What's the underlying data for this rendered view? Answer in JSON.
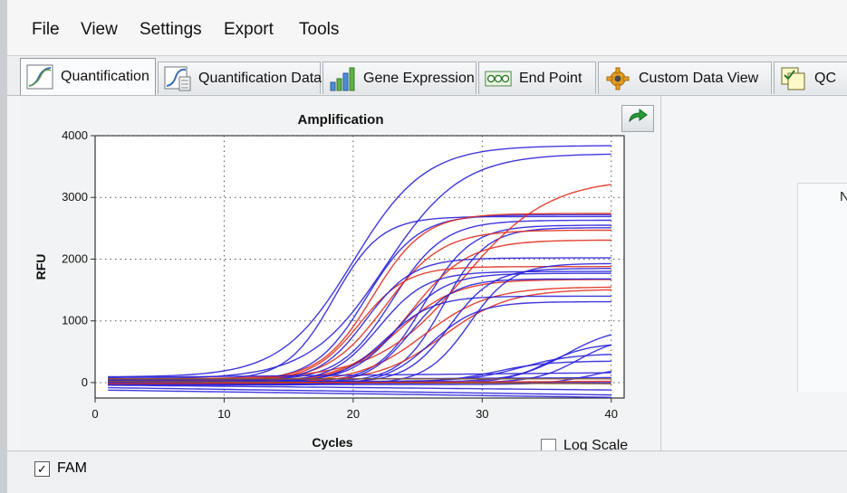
{
  "menu": {
    "items": [
      "File",
      "View",
      "Settings",
      "Export",
      "Tools"
    ]
  },
  "tabs": [
    {
      "label": "Quantification",
      "icon": "amplification-curve-icon",
      "active": true
    },
    {
      "label": "Quantification Data",
      "icon": "amplification-data-icon",
      "active": false
    },
    {
      "label": "Gene Expression",
      "icon": "bar-chart-icon",
      "active": false
    },
    {
      "label": "End Point",
      "icon": "endpoint-wells-icon",
      "active": false
    },
    {
      "label": "Custom Data View",
      "icon": "gear-icon",
      "active": false
    },
    {
      "label": "QC",
      "icon": "qc-checklist-icon",
      "active": false
    }
  ],
  "right_panel": {
    "partial_text": "N"
  },
  "log_scale": {
    "label": "Log Scale",
    "checked": false
  },
  "fam": {
    "label": "FAM",
    "checked": true
  },
  "colors": {
    "blue": "#2a22d8",
    "red": "#e0301e",
    "brown": "#8b5a2b"
  },
  "chart_data": {
    "type": "line",
    "title": "Amplification",
    "xlabel": "Cycles",
    "ylabel": "RFU",
    "xlim": [
      0,
      41
    ],
    "ylim": [
      -250,
      4000
    ],
    "xticks": [
      0,
      10,
      20,
      30,
      40
    ],
    "yticks": [
      0,
      1000,
      2000,
      3000,
      4000
    ],
    "grid": true,
    "legend": "none",
    "series": [
      {
        "color": "blue",
        "baseline": 90,
        "plateau": 3750,
        "ct": 20.0,
        "k": 0.36
      },
      {
        "color": "blue",
        "baseline": 60,
        "plateau": 3650,
        "ct": 22.5,
        "k": 0.34
      },
      {
        "color": "blue",
        "baseline": 40,
        "plateau": 2650,
        "ct": 18.5,
        "k": 0.55
      },
      {
        "color": "blue",
        "baseline": 20,
        "plateau": 2700,
        "ct": 21.0,
        "k": 0.5
      },
      {
        "color": "blue",
        "baseline": 30,
        "plateau": 2600,
        "ct": 23.0,
        "k": 0.5
      },
      {
        "color": "blue",
        "baseline": 0,
        "plateau": 2550,
        "ct": 25.5,
        "k": 0.55
      },
      {
        "color": "blue",
        "baseline": 10,
        "plateau": 2500,
        "ct": 27.0,
        "k": 0.6
      },
      {
        "color": "red",
        "baseline": 60,
        "plateau": 3250,
        "ct": 28.5,
        "k": 0.3
      },
      {
        "color": "red",
        "baseline": 40,
        "plateau": 2700,
        "ct": 21.5,
        "k": 0.5
      },
      {
        "color": "red",
        "baseline": 20,
        "plateau": 2450,
        "ct": 22.5,
        "k": 0.45
      },
      {
        "color": "red",
        "baseline": 10,
        "plateau": 2300,
        "ct": 24.5,
        "k": 0.45
      },
      {
        "color": "red",
        "baseline": 30,
        "plateau": 1850,
        "ct": 20.5,
        "k": 0.55
      },
      {
        "color": "red",
        "baseline": 20,
        "plateau": 1650,
        "ct": 23.5,
        "k": 0.45
      },
      {
        "color": "red",
        "baseline": 0,
        "plateau": 1550,
        "ct": 25.5,
        "k": 0.4
      },
      {
        "color": "red",
        "baseline": 10,
        "plateau": 1500,
        "ct": 27.0,
        "k": 0.4
      },
      {
        "color": "blue",
        "baseline": 20,
        "plateau": 2000,
        "ct": 21.0,
        "k": 0.55
      },
      {
        "color": "blue",
        "baseline": 0,
        "plateau": 1800,
        "ct": 22.0,
        "k": 0.55
      },
      {
        "color": "blue",
        "baseline": 20,
        "plateau": 1750,
        "ct": 23.5,
        "k": 0.55
      },
      {
        "color": "blue",
        "baseline": -20,
        "plateau": 1700,
        "ct": 24.5,
        "k": 0.6
      },
      {
        "color": "blue",
        "baseline": 0,
        "plateau": 1400,
        "ct": 22.5,
        "k": 0.55
      },
      {
        "color": "blue",
        "baseline": -40,
        "plateau": 1350,
        "ct": 26.0,
        "k": 0.55
      },
      {
        "color": "blue",
        "baseline": 0,
        "plateau": 1850,
        "ct": 27.5,
        "k": 0.6
      },
      {
        "color": "blue",
        "baseline": -20,
        "plateau": 1950,
        "ct": 29.0,
        "k": 0.6
      },
      {
        "color": "blue",
        "baseline": 10,
        "plateau": 900,
        "ct": 36.5,
        "k": 0.5
      },
      {
        "color": "blue",
        "baseline": 0,
        "plateau": 750,
        "ct": 37.5,
        "k": 0.6
      },
      {
        "color": "blue",
        "baseline": -10,
        "plateau": 650,
        "ct": 35.0,
        "k": 0.6
      },
      {
        "color": "blue",
        "baseline": 20,
        "plateau": 450,
        "ct": 33.0,
        "k": 0.5
      },
      {
        "color": "blue",
        "baseline": 0,
        "plateau": 350,
        "ct": 31.0,
        "k": 0.5
      },
      {
        "color": "blue",
        "baseline": -30,
        "plateau": 300,
        "ct": 38.5,
        "k": 0.6
      },
      {
        "color": "blue",
        "baseline": 80,
        "plateau": 0,
        "ct": 30,
        "k": 0.5,
        "drift": 2
      },
      {
        "color": "blue",
        "baseline": 40,
        "plateau": 0,
        "ct": 30,
        "k": 0.5,
        "drift": 1
      },
      {
        "color": "blue",
        "baseline": 0,
        "plateau": 0,
        "ct": 30,
        "k": 0.5,
        "drift": 0
      },
      {
        "color": "blue",
        "baseline": -40,
        "plateau": 0,
        "ct": 30,
        "k": 0.5,
        "drift": -2
      },
      {
        "color": "blue",
        "baseline": -80,
        "plateau": 0,
        "ct": 30,
        "k": 0.5,
        "drift": -3
      },
      {
        "color": "blue",
        "baseline": -120,
        "plateau": 0,
        "ct": 30,
        "k": 0.5,
        "drift": -3
      },
      {
        "color": "brown",
        "baseline": 60,
        "plateau": 0,
        "ct": 30,
        "k": 0.5,
        "drift": 0
      },
      {
        "color": "brown",
        "baseline": 20,
        "plateau": 0,
        "ct": 30,
        "k": 0.5,
        "drift": -1
      },
      {
        "color": "red",
        "baseline": -20,
        "plateau": 0,
        "ct": 30,
        "k": 0.5,
        "drift": 1
      }
    ]
  }
}
